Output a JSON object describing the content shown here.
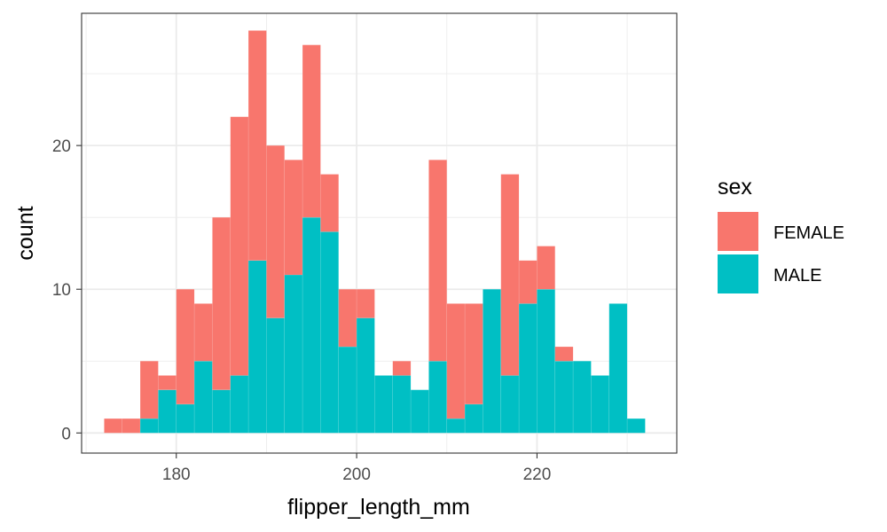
{
  "chart_data": {
    "type": "bar",
    "stacked": true,
    "xlabel": "flipper_length_mm",
    "ylabel": "count",
    "legend_title": "sex",
    "legend_position": "right",
    "grid": true,
    "xlim": [
      169.5,
      235.5
    ],
    "ylim": [
      -1.4,
      29.2
    ],
    "x_ticks": [
      180,
      200,
      220
    ],
    "x_minor_ticks": [
      170,
      190,
      210,
      230
    ],
    "y_ticks": [
      0,
      10,
      20
    ],
    "y_minor_ticks": [
      5,
      15,
      25
    ],
    "bins": [
      {
        "x0": 172,
        "x1": 174
      },
      {
        "x0": 174,
        "x1": 176
      },
      {
        "x0": 176,
        "x1": 178
      },
      {
        "x0": 178,
        "x1": 180
      },
      {
        "x0": 180,
        "x1": 182
      },
      {
        "x0": 182,
        "x1": 184
      },
      {
        "x0": 184,
        "x1": 186
      },
      {
        "x0": 186,
        "x1": 188
      },
      {
        "x0": 188,
        "x1": 190
      },
      {
        "x0": 190,
        "x1": 192
      },
      {
        "x0": 192,
        "x1": 194
      },
      {
        "x0": 194,
        "x1": 196
      },
      {
        "x0": 196,
        "x1": 198
      },
      {
        "x0": 198,
        "x1": 200
      },
      {
        "x0": 200,
        "x1": 202
      },
      {
        "x0": 202,
        "x1": 204
      },
      {
        "x0": 204,
        "x1": 206
      },
      {
        "x0": 206,
        "x1": 208
      },
      {
        "x0": 208,
        "x1": 210
      },
      {
        "x0": 210,
        "x1": 212
      },
      {
        "x0": 212,
        "x1": 214
      },
      {
        "x0": 214,
        "x1": 216
      },
      {
        "x0": 216,
        "x1": 218
      },
      {
        "x0": 218,
        "x1": 220
      },
      {
        "x0": 220,
        "x1": 222
      },
      {
        "x0": 222,
        "x1": 224
      },
      {
        "x0": 224,
        "x1": 226
      },
      {
        "x0": 226,
        "x1": 228
      },
      {
        "x0": 228,
        "x1": 230
      },
      {
        "x0": 230,
        "x1": 232
      }
    ],
    "series": [
      {
        "name": "MALE",
        "color": "#00BFC4",
        "values": [
          0,
          0,
          1,
          3,
          2,
          5,
          3,
          4,
          12,
          8,
          11,
          15,
          14,
          6,
          8,
          4,
          4,
          3,
          5,
          1,
          2,
          10,
          4,
          9,
          10,
          5,
          5,
          4,
          9,
          1
        ]
      },
      {
        "name": "FEMALE",
        "color": "#F8766D",
        "values": [
          1,
          1,
          4,
          1,
          8,
          4,
          12,
          18,
          16,
          12,
          8,
          12,
          4,
          4,
          2,
          0,
          1,
          0,
          14,
          8,
          7,
          0,
          14,
          3,
          3,
          1,
          0,
          0,
          0,
          0
        ]
      }
    ]
  }
}
